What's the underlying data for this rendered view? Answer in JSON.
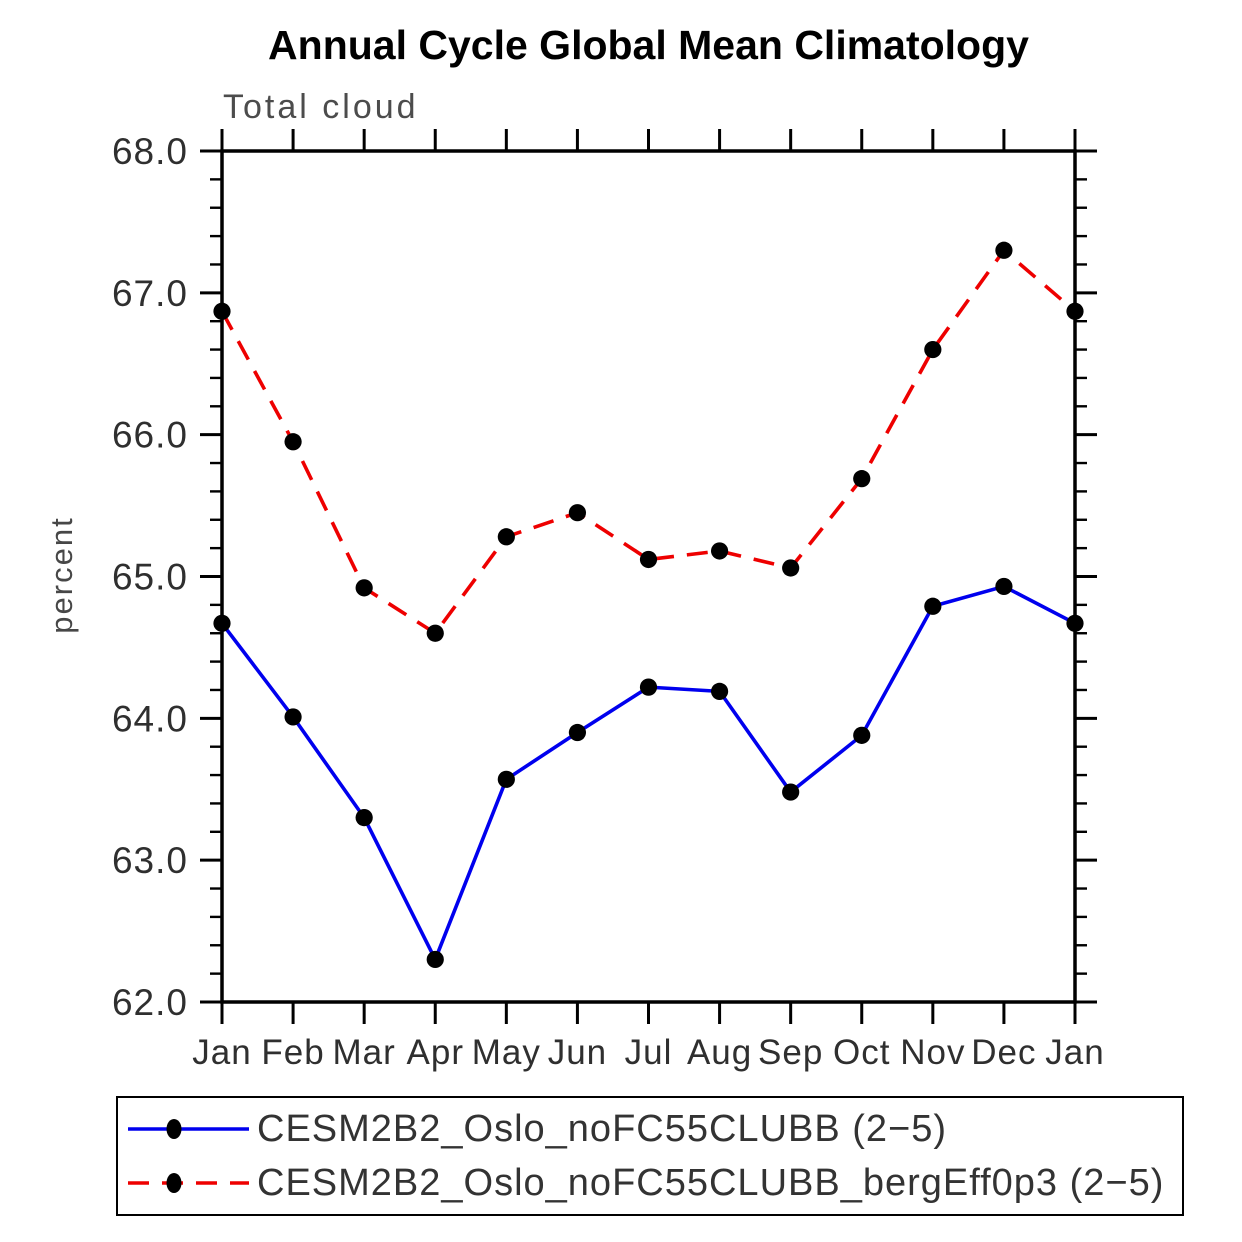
{
  "page": {
    "background": "#ffffff"
  },
  "chart_data": {
    "type": "line",
    "title": "Annual Cycle Global Mean Climatology",
    "subtitle": "Total cloud",
    "ylabel": "percent",
    "xlabel": "",
    "categories": [
      "Jan",
      "Feb",
      "Mar",
      "Apr",
      "May",
      "Jun",
      "Jul",
      "Aug",
      "Sep",
      "Oct",
      "Nov",
      "Dec",
      "Jan"
    ],
    "ylim": [
      62.0,
      68.0
    ],
    "y_major_step": 1.0,
    "y_minor_step": 0.2,
    "y_tick_labels": [
      "62.0",
      "63.0",
      "64.0",
      "65.0",
      "66.0",
      "67.0",
      "68.0"
    ],
    "grid": false,
    "legend_position": "bottom",
    "axis_color": "#000000",
    "marker_color": "#000000",
    "series": [
      {
        "name": "CESM2B2_Oslo_noFC55CLUBB (2−5)",
        "color": "#0000ee",
        "line_style": "solid",
        "marker": "filled-circle",
        "values": [
          64.67,
          64.01,
          63.3,
          62.3,
          63.57,
          63.9,
          64.22,
          64.19,
          63.48,
          63.88,
          64.79,
          64.93,
          64.67
        ]
      },
      {
        "name": "CESM2B2_Oslo_noFC55CLUBB_bergEff0p3 (2−5)",
        "color": "#ee0000",
        "line_style": "dashed",
        "marker": "filled-circle",
        "values": [
          66.87,
          65.95,
          64.92,
          64.6,
          65.28,
          65.45,
          65.12,
          65.18,
          65.06,
          65.69,
          66.6,
          67.3,
          66.87
        ]
      }
    ]
  }
}
